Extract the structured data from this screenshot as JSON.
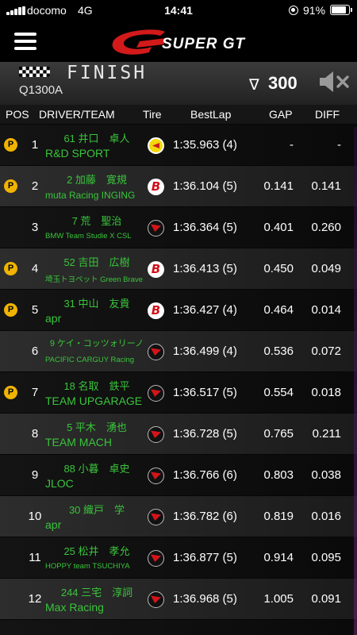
{
  "status_bar": {
    "carrier": "docomo",
    "network": "4G",
    "time": "14:41",
    "battery": "91%"
  },
  "brand": {
    "name": "SUPER GT",
    "accent": "#d31a1a"
  },
  "session": {
    "state": "FINISH",
    "code": "Q1300A",
    "sort_symbol": "∇",
    "sort_value": "300"
  },
  "columns": {
    "pos": "POS",
    "driver_team": "DRIVER/TEAM",
    "tire": "Tire",
    "bestlap": "BestLap",
    "gap": "GAP",
    "diff": "DIFF"
  },
  "rows": [
    {
      "pit": "P",
      "pos": "1",
      "driver": "61 井口　卓人",
      "team": "R&D SPORT",
      "tire": "dunlop",
      "bestlap": "1:35.963 (4)",
      "gap": "-",
      "diff": "-"
    },
    {
      "pit": "P",
      "pos": "2",
      "driver": "2 加藤　寛規",
      "team": "muta Racing INGING",
      "tire": "bridgestone",
      "bestlap": "1:36.104 (5)",
      "gap": "0.141",
      "diff": "0.141"
    },
    {
      "pit": "",
      "pos": "3",
      "driver": "7 荒　聖治",
      "team": "BMW Team Studie X CSL",
      "tire": "yokohama",
      "bestlap": "1:36.364 (5)",
      "gap": "0.401",
      "diff": "0.260"
    },
    {
      "pit": "P",
      "pos": "4",
      "driver": "52 吉田　広樹",
      "team": "埼玉トヨペット Green Brave",
      "tire": "bridgestone",
      "bestlap": "1:36.413 (5)",
      "gap": "0.450",
      "diff": "0.049"
    },
    {
      "pit": "P",
      "pos": "5",
      "driver": "31 中山　友貴",
      "team": "apr",
      "tire": "bridgestone",
      "bestlap": "1:36.427 (4)",
      "gap": "0.464",
      "diff": "0.014"
    },
    {
      "pit": "",
      "pos": "6",
      "driver": "9 ケイ・コッツォリーノ",
      "team": "PACIFIC CARGUY Racing",
      "tire": "yokohama",
      "bestlap": "1:36.499 (4)",
      "gap": "0.536",
      "diff": "0.072"
    },
    {
      "pit": "P",
      "pos": "7",
      "driver": "18 名取　鉄平",
      "team": "TEAM UPGARAGE",
      "tire": "yokohama",
      "bestlap": "1:36.517 (5)",
      "gap": "0.554",
      "diff": "0.018"
    },
    {
      "pit": "",
      "pos": "8",
      "driver": "5 平木　湧也",
      "team": "TEAM MACH",
      "tire": "yokohama",
      "bestlap": "1:36.728 (5)",
      "gap": "0.765",
      "diff": "0.211"
    },
    {
      "pit": "",
      "pos": "9",
      "driver": "88 小暮　卓史",
      "team": "JLOC",
      "tire": "yokohama",
      "bestlap": "1:36.766 (6)",
      "gap": "0.803",
      "diff": "0.038"
    },
    {
      "pit": "",
      "pos": "10",
      "driver": "30 織戸　学",
      "team": "apr",
      "tire": "yokohama",
      "bestlap": "1:36.782 (6)",
      "gap": "0.819",
      "diff": "0.016"
    },
    {
      "pit": "",
      "pos": "11",
      "driver": "25 松井　孝允",
      "team": "HOPPY team TSUCHIYA",
      "tire": "yokohama",
      "bestlap": "1:36.877 (5)",
      "gap": "0.914",
      "diff": "0.095"
    },
    {
      "pit": "",
      "pos": "12",
      "driver": "244 三宅　淳詞",
      "team": "Max Racing",
      "tire": "yokohama",
      "bestlap": "1:36.968 (5)",
      "gap": "1.005",
      "diff": "0.091"
    }
  ]
}
